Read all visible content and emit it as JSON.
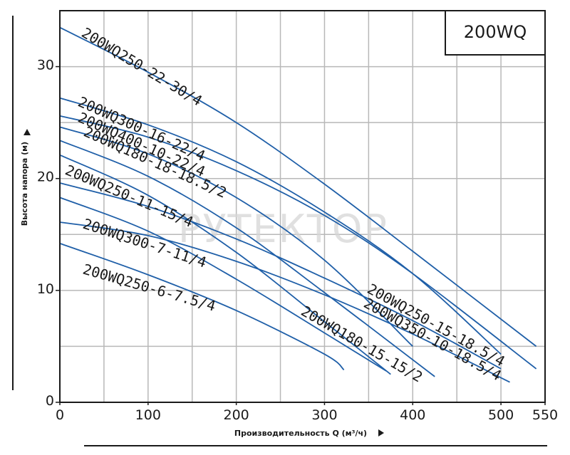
{
  "chart_data": {
    "type": "line",
    "title": "200WQ",
    "xlabel": "Производительность Q (м³/ч)",
    "ylabel": "Высота напора (м)",
    "xlim": [
      0,
      550
    ],
    "ylim": [
      0,
      35
    ],
    "x_ticks": [
      0,
      100,
      200,
      300,
      400,
      500,
      550
    ],
    "x_tick_labels": [
      "0",
      "100",
      "200",
      "300",
      "400",
      "500",
      "550"
    ],
    "y_ticks": [
      0,
      10,
      20,
      30
    ],
    "y_tick_labels": [
      "0",
      "10",
      "20",
      "30"
    ],
    "grid": true,
    "line_color": "#1f5fa8",
    "grid_color": "#b8b8b8",
    "watermark": "РУТЕКТОР",
    "series": [
      {
        "name": "200WQ250-22-30/4",
        "x": [
          0,
          100,
          200,
          300,
          400,
          540
        ],
        "y": [
          33.5,
          29.5,
          25.0,
          19.5,
          13.5,
          5.0
        ]
      },
      {
        "name": "200WQ300-16-22/4",
        "x": [
          0,
          100,
          200,
          300,
          400,
          500
        ],
        "y": [
          27.2,
          24.8,
          21.5,
          17.0,
          11.5,
          4.3
        ]
      },
      {
        "name": "200WQ400-10-22/4",
        "x": [
          0,
          100,
          200,
          300,
          400,
          540
        ],
        "y": [
          25.6,
          23.7,
          20.7,
          16.7,
          11.5,
          3.0
        ]
      },
      {
        "name": "200WQ180-18-18.5/2",
        "x": [
          0,
          100,
          200,
          300,
          400
        ],
        "y": [
          24.6,
          22.2,
          18.3,
          12.7,
          5.0
        ]
      },
      {
        "name": "200WQ250-11-15/4",
        "x": [
          0,
          100,
          200,
          300,
          425
        ],
        "y": [
          23.4,
          20.2,
          15.6,
          9.8,
          2.3
        ]
      },
      {
        "name": "200WQ300-7-11/4",
        "x": [
          0,
          100,
          200,
          300,
          375
        ],
        "y": [
          22.1,
          18.5,
          13.4,
          7.2,
          2.5
        ]
      },
      {
        "name": "200WQ250-6-7.5/4",
        "x": [
          0,
          100,
          200,
          300,
          370
        ],
        "y": [
          18.3,
          15.3,
          11.0,
          6.2,
          2.8
        ]
      },
      {
        "name": "200WQ180-15-15/2",
        "x": [
          0,
          100,
          200,
          300,
          322
        ],
        "y": [
          14.2,
          11.4,
          8.2,
          4.3,
          2.9
        ]
      },
      {
        "name": "200WQ250-15-18.5/4",
        "x": [
          0,
          100,
          200,
          300,
          400,
          500
        ],
        "y": [
          19.6,
          17.5,
          14.6,
          11.1,
          7.3,
          3.0
        ]
      },
      {
        "name": "200WQ350-10-18.5/4",
        "x": [
          0,
          100,
          200,
          300,
          400,
          510
        ],
        "y": [
          16.1,
          14.9,
          12.6,
          9.6,
          6.1,
          1.8
        ]
      }
    ],
    "labels": [
      {
        "text": "200WQ250-22-30/4",
        "series": 0
      },
      {
        "text": "200WQ300-16-22/4",
        "series": 1
      },
      {
        "text": "200WQ400-10-22/4",
        "series": 2
      },
      {
        "text": "200WQ180-18-18.5/2",
        "series": 3
      },
      {
        "text": "200WQ250-11-15/4",
        "series": 4
      },
      {
        "text": "200WQ300-7-11/4",
        "series": 5
      },
      {
        "text": "200WQ250-6-7.5/4",
        "series": 6
      },
      {
        "text": "200WQ180-15-15/2",
        "series": 7
      },
      {
        "text": "200WQ250-15-18.5/4",
        "series": 8
      },
      {
        "text": "200WQ350-10-18.5/4",
        "series": 9
      }
    ]
  }
}
